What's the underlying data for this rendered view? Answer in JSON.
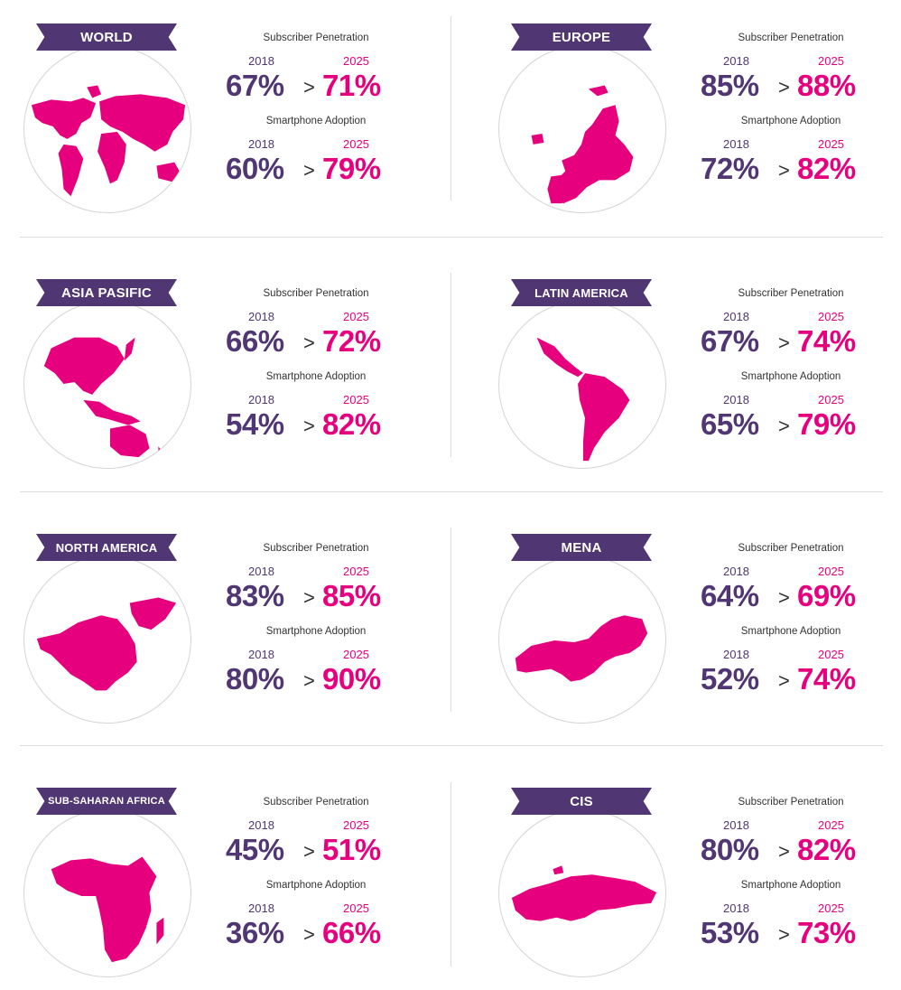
{
  "colors": {
    "purple": "#503673",
    "pink": "#e6007e",
    "divider": "#dcdcdc"
  },
  "labels": {
    "subscriber_penetration": "Subscriber Penetration",
    "smartphone_adoption": "Smartphone Adoption",
    "year_from": "2018",
    "year_to": "2025",
    "arrow": ">"
  },
  "regions": [
    {
      "name": "WORLD",
      "map_icon": "world-map-icon",
      "sp_2018": "67%",
      "sp_2025": "71%",
      "sa_2018": "60%",
      "sa_2025": "79%"
    },
    {
      "name": "EUROPE",
      "map_icon": "europe-map-icon",
      "sp_2018": "85%",
      "sp_2025": "88%",
      "sa_2018": "72%",
      "sa_2025": "82%"
    },
    {
      "name": "ASIA PASIFIC",
      "map_icon": "asia-pacific-map-icon",
      "sp_2018": "66%",
      "sp_2025": "72%",
      "sa_2018": "54%",
      "sa_2025": "82%"
    },
    {
      "name": "LATIN AMERICA",
      "map_icon": "latin-america-map-icon",
      "sp_2018": "67%",
      "sp_2025": "74%",
      "sa_2018": "65%",
      "sa_2025": "79%"
    },
    {
      "name": "NORTH AMERICA",
      "map_icon": "north-america-map-icon",
      "sp_2018": "83%",
      "sp_2025": "85%",
      "sa_2018": "80%",
      "sa_2025": "90%"
    },
    {
      "name": "MENA",
      "map_icon": "mena-map-icon",
      "sp_2018": "64%",
      "sp_2025": "69%",
      "sa_2018": "52%",
      "sa_2025": "74%"
    },
    {
      "name": "SUB-SAHARAN AFRICA",
      "map_icon": "sub-saharan-africa-map-icon",
      "sp_2018": "45%",
      "sp_2025": "51%",
      "sa_2018": "36%",
      "sa_2025": "66%"
    },
    {
      "name": "CIS",
      "map_icon": "cis-map-icon",
      "sp_2018": "80%",
      "sp_2025": "82%",
      "sa_2018": "53%",
      "sa_2025": "73%"
    }
  ]
}
